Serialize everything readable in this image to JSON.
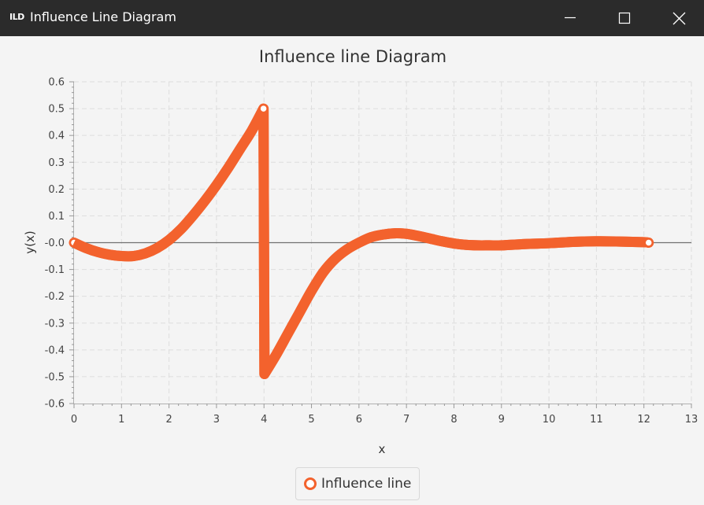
{
  "window": {
    "app_icon_text": "ILD",
    "title": "Influence Line Diagram"
  },
  "icons": {
    "minimize": "minimize-icon",
    "maximize": "maximize-icon",
    "close": "close-icon"
  },
  "colors": {
    "series": "#f3622d",
    "titlebar": "#2b2b2b",
    "grid": "#dddddd"
  },
  "chart_data": {
    "type": "line",
    "title": "Influence line Diagram",
    "xlabel": "x",
    "ylabel": "y(x)",
    "xlim": [
      0,
      13
    ],
    "ylim": [
      -0.6,
      0.6
    ],
    "x_ticks": [
      0,
      1,
      2,
      3,
      4,
      5,
      6,
      7,
      8,
      9,
      10,
      11,
      12,
      13
    ],
    "y_ticks": [
      0.6,
      0.5,
      0.4,
      0.3,
      0.2,
      0.1,
      -0.0,
      -0.1,
      -0.2,
      -0.3,
      -0.4,
      -0.5,
      -0.6
    ],
    "y_tick_labels": [
      "0.6",
      "0.5",
      "0.4",
      "0.3",
      "0.2",
      "0.1",
      "-0.0",
      "-0.1",
      "-0.2",
      "-0.3",
      "-0.4",
      "-0.5",
      "-0.6"
    ],
    "grid": true,
    "legend": "bottom-center",
    "series": [
      {
        "name": "Influence line",
        "x": [
          0,
          0.25,
          0.5,
          0.75,
          1,
          1.25,
          1.5,
          1.75,
          2,
          2.25,
          2.5,
          2.75,
          3,
          3.25,
          3.5,
          3.75,
          3.99,
          4.01,
          4.25,
          4.5,
          4.75,
          5,
          5.25,
          5.5,
          5.75,
          6,
          6.25,
          6.5,
          6.75,
          7,
          7.25,
          7.5,
          7.75,
          8,
          8.25,
          8.5,
          8.75,
          9,
          9.5,
          10,
          10.5,
          11,
          11.5,
          12,
          12.1
        ],
        "y": [
          0,
          -0.02,
          -0.035,
          -0.045,
          -0.05,
          -0.05,
          -0.04,
          -0.02,
          0.01,
          0.05,
          0.1,
          0.155,
          0.215,
          0.28,
          0.35,
          0.42,
          0.5,
          -0.49,
          -0.42,
          -0.34,
          -0.26,
          -0.18,
          -0.11,
          -0.06,
          -0.025,
          0,
          0.02,
          0.03,
          0.035,
          0.033,
          0.025,
          0.015,
          0.005,
          -0.003,
          -0.008,
          -0.01,
          -0.01,
          -0.01,
          -0.005,
          -0.002,
          0.003,
          0.005,
          0.004,
          0.002,
          0
        ]
      }
    ]
  }
}
